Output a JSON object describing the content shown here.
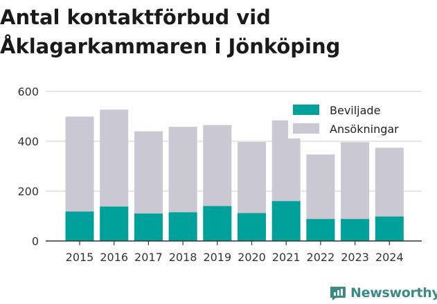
{
  "chart_data": {
    "type": "bar",
    "title": "Antal kontaktförbud vid Åklagarkammaren i Jönköping",
    "categories": [
      "2015",
      "2016",
      "2017",
      "2018",
      "2019",
      "2020",
      "2021",
      "2022",
      "2023",
      "2024"
    ],
    "series": [
      {
        "name": "Beviljade",
        "color": "#00a19a",
        "values": [
          118,
          138,
          110,
          115,
          140,
          112,
          160,
          88,
          88,
          98
        ]
      },
      {
        "name": "Ansökningar",
        "color": "#c9c8d3",
        "values": [
          499,
          527,
          440,
          458,
          465,
          397,
          484,
          347,
          396,
          374
        ]
      }
    ],
    "ylim": [
      0,
      600
    ],
    "yticks": [
      0,
      200,
      400,
      600
    ],
    "grid": true,
    "legend_position": "top-right"
  },
  "brand": {
    "name": "Newsworthy",
    "color": "#3a8a86",
    "icon": "bar-chart-icon"
  }
}
